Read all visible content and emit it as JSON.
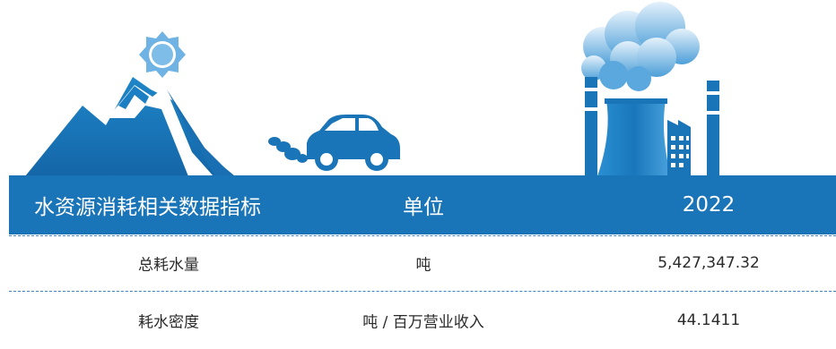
{
  "table": {
    "header": [
      "水资源消耗相关数据指标",
      "单位",
      "2022"
    ],
    "rows": [
      [
        "总耗水量",
        "吨",
        "5,427,347.32"
      ],
      [
        "耗水密度",
        "吨 / 百万营业收入",
        "44.1411"
      ]
    ]
  },
  "colors": {
    "header_bg": "#1a74b8",
    "divider": "#3f82c4",
    "illustration_primary": "#1a74b8",
    "illustration_light": "#6fb3e4"
  },
  "illustration": {
    "icons": [
      "mountain-icon",
      "sun-icon",
      "car-icon",
      "exhaust-smoke-icon",
      "factory-icon",
      "smoke-cloud-icon"
    ]
  }
}
